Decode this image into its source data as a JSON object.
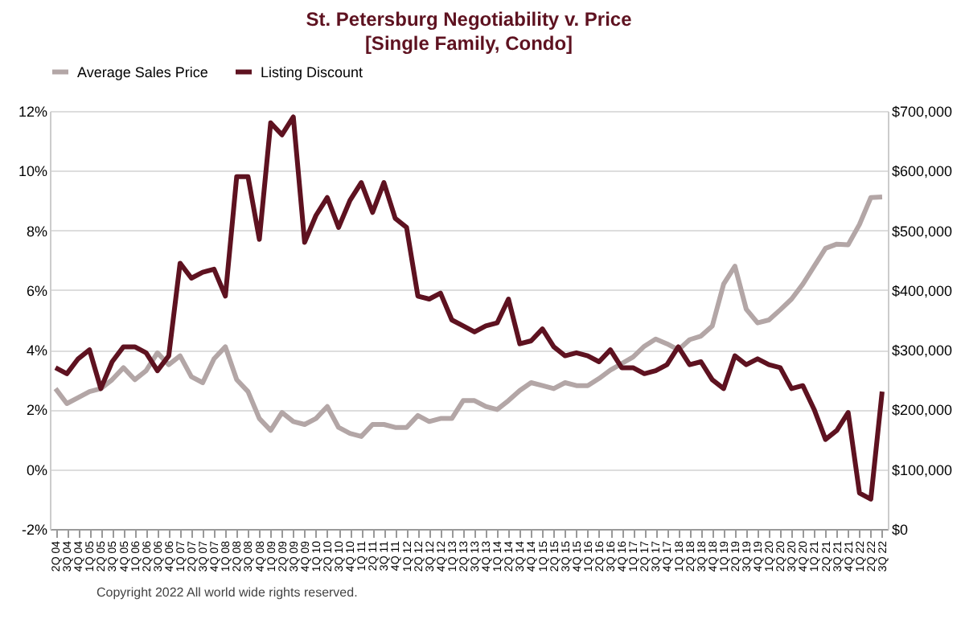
{
  "chart_data": {
    "type": "line",
    "title": "St. Petersburg Negotiability v. Price",
    "subtitle": "[Single Family, Condo]",
    "categories": [
      "2Q 04",
      "3Q 04",
      "4Q 04",
      "1Q 05",
      "2Q 05",
      "3Q 05",
      "4Q 05",
      "1Q 06",
      "2Q 06",
      "3Q 06",
      "4Q 06",
      "1Q 07",
      "2Q 07",
      "3Q 07",
      "4Q 07",
      "1Q 08",
      "2Q 08",
      "3Q 08",
      "4Q 08",
      "1Q 09",
      "2Q 09",
      "3Q 09",
      "4Q 09",
      "1Q 10",
      "2Q 10",
      "3Q 10",
      "4Q 10",
      "1Q 11",
      "2Q 11",
      "3Q 11",
      "4Q 11",
      "1Q 12",
      "2Q 12",
      "3Q 12",
      "4Q 12",
      "1Q 13",
      "2Q 13",
      "3Q 13",
      "4Q 13",
      "1Q 14",
      "2Q 14",
      "3Q 14",
      "4Q 14",
      "1Q 15",
      "2Q 15",
      "3Q 15",
      "4Q 15",
      "1Q 16",
      "2Q 16",
      "3Q 16",
      "4Q 16",
      "1Q 17",
      "2Q 17",
      "3Q 17",
      "4Q 17",
      "1Q 18",
      "2Q 18",
      "3Q 18",
      "4Q 18",
      "1Q 19",
      "2Q 19",
      "3Q 19",
      "4Q 19",
      "1Q 20",
      "2Q 20",
      "3Q 20",
      "4Q 20",
      "1Q 21",
      "2Q 21",
      "3Q 21",
      "4Q 21",
      "1Q 22",
      "2Q 22",
      "3Q 22"
    ],
    "series": [
      {
        "name": "Average Sales Price",
        "color": "#b3a6a6",
        "axis": "y2",
        "values": [
          235000,
          210000,
          220000,
          230000,
          235000,
          250000,
          270000,
          250000,
          265000,
          295000,
          275000,
          290000,
          255000,
          245000,
          285000,
          305000,
          250000,
          230000,
          185000,
          165000,
          195000,
          180000,
          175000,
          185000,
          205000,
          170000,
          160000,
          155000,
          175000,
          175000,
          170000,
          170000,
          190000,
          180000,
          185000,
          185000,
          215000,
          215000,
          205000,
          200000,
          215000,
          232000,
          245000,
          240000,
          235000,
          245000,
          240000,
          240000,
          252000,
          266000,
          277000,
          288000,
          306000,
          318000,
          310000,
          300000,
          317000,
          323000,
          340000,
          410000,
          440000,
          368000,
          345000,
          350000,
          367000,
          385000,
          410000,
          440000,
          470000,
          477000,
          476000,
          510000,
          555000,
          556000
        ]
      },
      {
        "name": "Listing Discount",
        "color": "#5e1220",
        "values": [
          3.4,
          3.2,
          3.7,
          4.0,
          2.7,
          3.6,
          4.1,
          4.1,
          3.9,
          3.3,
          3.8,
          6.9,
          6.4,
          6.6,
          6.7,
          5.8,
          9.8,
          9.8,
          7.7,
          11.6,
          11.2,
          11.8,
          7.6,
          8.5,
          9.1,
          8.1,
          9.0,
          9.6,
          8.6,
          9.6,
          8.4,
          8.1,
          5.8,
          5.7,
          5.9,
          5.0,
          4.8,
          4.6,
          4.8,
          4.9,
          5.7,
          4.2,
          4.3,
          4.7,
          4.1,
          3.8,
          3.9,
          3.8,
          3.6,
          4.0,
          3.4,
          3.4,
          3.2,
          3.3,
          3.5,
          4.1,
          3.5,
          3.6,
          3.0,
          2.7,
          3.8,
          3.5,
          3.7,
          3.5,
          3.4,
          2.7,
          2.8,
          2.0,
          1.0,
          1.3,
          1.9,
          -0.8,
          -1.0,
          2.6
        ]
      }
    ],
    "ylim": [
      -2,
      12
    ],
    "yticks": [
      {
        "value": -2,
        "label": "-2%"
      },
      {
        "value": 0,
        "label": "0%"
      },
      {
        "value": 2,
        "label": "2%"
      },
      {
        "value": 4,
        "label": "4%"
      },
      {
        "value": 6,
        "label": "6%"
      },
      {
        "value": 8,
        "label": "8%"
      },
      {
        "value": 10,
        "label": "10%"
      },
      {
        "value": 12,
        "label": "12%"
      }
    ],
    "y2lim": [
      0,
      700000
    ],
    "y2ticks": [
      {
        "value": 0,
        "label": "$0"
      },
      {
        "value": 100000,
        "label": "$100,000"
      },
      {
        "value": 200000,
        "label": "$200,000"
      },
      {
        "value": 300000,
        "label": "$300,000"
      },
      {
        "value": 400000,
        "label": "$400,000"
      },
      {
        "value": 500000,
        "label": "$500,000"
      },
      {
        "value": 600000,
        "label": "$600,000"
      },
      {
        "value": 700000,
        "label": "$700,000"
      }
    ],
    "grid": "y",
    "legend": "top",
    "annotations": [
      "Copyright 2022 All world wide rights reserved."
    ]
  }
}
